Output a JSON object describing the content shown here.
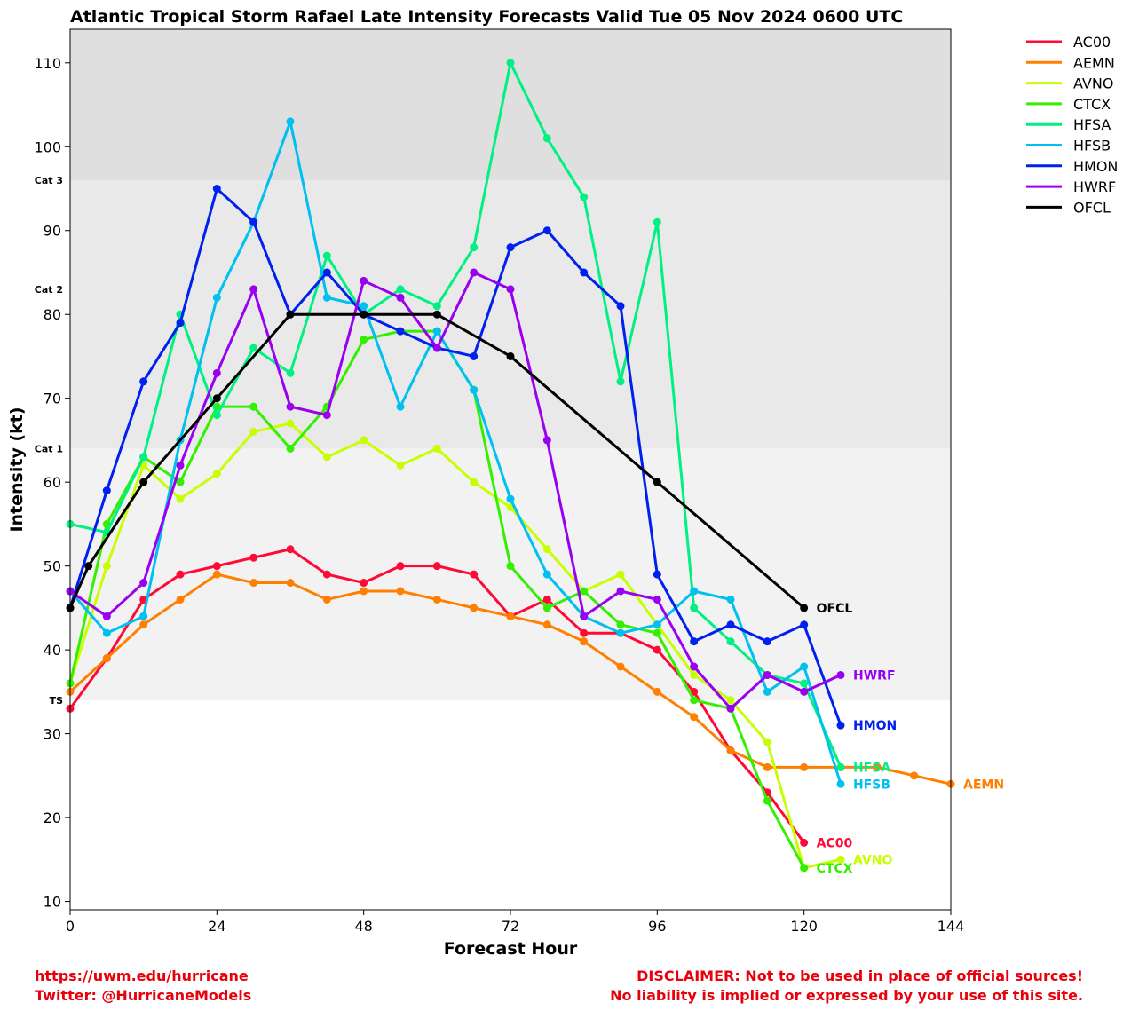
{
  "chart_data": {
    "type": "line",
    "title": "Atlantic Tropical Storm Rafael Late Intensity Forecasts Valid Tue 05 Nov 2024 0600 UTC",
    "xlabel": "Forecast Hour",
    "ylabel": "Intensity (kt)",
    "xlim": [
      0,
      144
    ],
    "ylim": [
      9,
      114
    ],
    "xticks": [
      0,
      24,
      48,
      72,
      96,
      120,
      144
    ],
    "yticks": [
      10,
      20,
      30,
      40,
      50,
      60,
      70,
      80,
      90,
      100,
      110
    ],
    "grid": false,
    "legend_position": "right outside",
    "bands": [
      {
        "label": "TS",
        "from": 34,
        "to": 64,
        "color": "#f2f2f2"
      },
      {
        "label": "Cat 1",
        "from": 64,
        "to": 83,
        "color": "#e9e9e9"
      },
      {
        "label": "Cat 2",
        "from": 83,
        "to": 96,
        "color": "#e9e9e9"
      },
      {
        "label": "Cat 3",
        "from": 96,
        "to": 114,
        "color": "#dfdfdf"
      }
    ],
    "series": [
      {
        "name": "AC00",
        "color": "#ff0a37",
        "points": [
          [
            0,
            33
          ],
          [
            6,
            39
          ],
          [
            12,
            46
          ],
          [
            18,
            49
          ],
          [
            24,
            50
          ],
          [
            30,
            51
          ],
          [
            36,
            52
          ],
          [
            42,
            49
          ],
          [
            48,
            48
          ],
          [
            54,
            50
          ],
          [
            60,
            50
          ],
          [
            66,
            49
          ],
          [
            72,
            44
          ],
          [
            78,
            46
          ],
          [
            84,
            42
          ],
          [
            90,
            42
          ],
          [
            96,
            40
          ],
          [
            102,
            35
          ],
          [
            108,
            28
          ],
          [
            114,
            23
          ],
          [
            120,
            17
          ]
        ]
      },
      {
        "name": "AEMN",
        "color": "#ff8000",
        "points": [
          [
            0,
            35
          ],
          [
            6,
            39
          ],
          [
            12,
            43
          ],
          [
            18,
            46
          ],
          [
            24,
            49
          ],
          [
            30,
            48
          ],
          [
            36,
            48
          ],
          [
            42,
            46
          ],
          [
            48,
            47
          ],
          [
            54,
            47
          ],
          [
            60,
            46
          ],
          [
            66,
            45
          ],
          [
            72,
            44
          ],
          [
            78,
            43
          ],
          [
            84,
            41
          ],
          [
            90,
            38
          ],
          [
            96,
            35
          ],
          [
            102,
            32
          ],
          [
            108,
            28
          ],
          [
            114,
            26
          ],
          [
            120,
            26
          ],
          [
            126,
            26
          ],
          [
            132,
            26
          ],
          [
            138,
            25
          ],
          [
            144,
            24
          ]
        ]
      },
      {
        "name": "AVNO",
        "color": "#c8ff00",
        "points": [
          [
            0,
            36
          ],
          [
            6,
            50
          ],
          [
            12,
            62
          ],
          [
            18,
            58
          ],
          [
            24,
            61
          ],
          [
            30,
            66
          ],
          [
            36,
            67
          ],
          [
            42,
            63
          ],
          [
            48,
            65
          ],
          [
            54,
            62
          ],
          [
            60,
            64
          ],
          [
            66,
            60
          ],
          [
            72,
            57
          ],
          [
            78,
            52
          ],
          [
            84,
            47
          ],
          [
            90,
            49
          ],
          [
            96,
            43
          ],
          [
            102,
            37
          ],
          [
            108,
            34
          ],
          [
            114,
            29
          ],
          [
            120,
            14
          ],
          [
            126,
            15
          ]
        ]
      },
      {
        "name": "CTCX",
        "color": "#32f000",
        "points": [
          [
            0,
            36
          ],
          [
            6,
            55
          ],
          [
            12,
            63
          ],
          [
            18,
            60
          ],
          [
            24,
            69
          ],
          [
            30,
            69
          ],
          [
            36,
            64
          ],
          [
            42,
            69
          ],
          [
            48,
            77
          ],
          [
            54,
            78
          ],
          [
            60,
            78
          ],
          [
            66,
            71
          ],
          [
            72,
            50
          ],
          [
            78,
            45
          ],
          [
            84,
            47
          ],
          [
            90,
            43
          ],
          [
            96,
            42
          ],
          [
            102,
            34
          ],
          [
            108,
            33
          ],
          [
            114,
            22
          ],
          [
            120,
            14
          ]
        ]
      },
      {
        "name": "HFSA",
        "color": "#00f082",
        "points": [
          [
            0,
            55
          ],
          [
            6,
            54
          ],
          [
            12,
            63
          ],
          [
            18,
            80
          ],
          [
            24,
            68
          ],
          [
            30,
            76
          ],
          [
            36,
            73
          ],
          [
            42,
            87
          ],
          [
            48,
            80
          ],
          [
            54,
            83
          ],
          [
            60,
            81
          ],
          [
            66,
            88
          ],
          [
            72,
            110
          ],
          [
            78,
            101
          ],
          [
            84,
            94
          ],
          [
            90,
            72
          ],
          [
            96,
            91
          ],
          [
            102,
            45
          ],
          [
            108,
            41
          ],
          [
            114,
            37
          ],
          [
            120,
            36
          ],
          [
            126,
            26
          ]
        ]
      },
      {
        "name": "HFSB",
        "color": "#00c0f0",
        "points": [
          [
            0,
            47
          ],
          [
            6,
            42
          ],
          [
            12,
            44
          ],
          [
            18,
            65
          ],
          [
            24,
            82
          ],
          [
            30,
            91
          ],
          [
            36,
            103
          ],
          [
            42,
            82
          ],
          [
            48,
            81
          ],
          [
            54,
            69
          ],
          [
            60,
            78
          ],
          [
            66,
            71
          ],
          [
            72,
            58
          ],
          [
            78,
            49
          ],
          [
            84,
            44
          ],
          [
            90,
            42
          ],
          [
            96,
            43
          ],
          [
            102,
            47
          ],
          [
            108,
            46
          ],
          [
            114,
            35
          ],
          [
            120,
            38
          ],
          [
            126,
            24
          ]
        ]
      },
      {
        "name": "HMON",
        "color": "#0020f0",
        "points": [
          [
            0,
            45
          ],
          [
            6,
            59
          ],
          [
            12,
            72
          ],
          [
            18,
            79
          ],
          [
            24,
            95
          ],
          [
            30,
            91
          ],
          [
            36,
            80
          ],
          [
            42,
            85
          ],
          [
            48,
            80
          ],
          [
            54,
            78
          ],
          [
            60,
            76
          ],
          [
            66,
            75
          ],
          [
            72,
            88
          ],
          [
            78,
            90
          ],
          [
            84,
            85
          ],
          [
            90,
            81
          ],
          [
            96,
            49
          ],
          [
            102,
            41
          ],
          [
            108,
            43
          ],
          [
            114,
            41
          ],
          [
            120,
            43
          ],
          [
            126,
            31
          ]
        ]
      },
      {
        "name": "HWRF",
        "color": "#9900f0",
        "points": [
          [
            0,
            47
          ],
          [
            6,
            44
          ],
          [
            12,
            48
          ],
          [
            18,
            62
          ],
          [
            24,
            73
          ],
          [
            30,
            83
          ],
          [
            36,
            69
          ],
          [
            42,
            68
          ],
          [
            48,
            84
          ],
          [
            54,
            82
          ],
          [
            60,
            76
          ],
          [
            66,
            85
          ],
          [
            72,
            83
          ],
          [
            78,
            65
          ],
          [
            84,
            44
          ],
          [
            90,
            47
          ],
          [
            96,
            46
          ],
          [
            102,
            38
          ],
          [
            108,
            33
          ],
          [
            114,
            37
          ],
          [
            120,
            35
          ],
          [
            126,
            37
          ]
        ]
      },
      {
        "name": "OFCL",
        "color": "#000000",
        "points": [
          [
            0,
            45
          ],
          [
            3,
            50
          ],
          [
            12,
            60
          ],
          [
            24,
            70
          ],
          [
            36,
            80
          ],
          [
            48,
            80
          ],
          [
            60,
            80
          ],
          [
            72,
            75
          ],
          [
            96,
            60
          ],
          [
            120,
            45
          ]
        ]
      }
    ]
  },
  "footer": {
    "left_line1": "https://uwm.edu/hurricane",
    "left_line2": "Twitter: @HurricaneModels",
    "right_line1": "DISCLAIMER: Not to be used in place of official sources!",
    "right_line2": "No liability is implied or expressed by your use of this site."
  }
}
